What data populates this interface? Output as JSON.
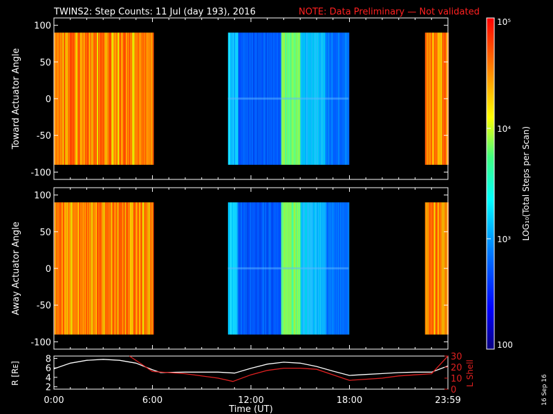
{
  "title": "TWINS2: Step Counts: 11 Jul (day 193), 2016",
  "note": "NOTE: Data Preliminary — Not validated",
  "date_stamp": "16 Sep 16",
  "colors": {
    "background": "#000000",
    "axis": "#ffffff",
    "note": "#ff2020",
    "lshell": "#e02020"
  },
  "chart_data": [
    {
      "type": "heatmap",
      "ylabel": "Toward Actuator Angle",
      "ylim": [
        -110,
        110
      ],
      "yticks": [
        "100",
        "50",
        "0",
        "-50",
        "-100"
      ],
      "ytick_values": [
        100,
        50,
        0,
        -50,
        -100
      ],
      "x_range_hours": [
        0,
        24
      ],
      "data_range": [
        -90,
        90
      ],
      "segments": [
        {
          "start": 0.0,
          "end": 6.05,
          "level": "high"
        },
        {
          "start": 10.6,
          "end": 17.95,
          "level": "mixed"
        },
        {
          "start": 22.6,
          "end": 24.0,
          "level": "high"
        }
      ]
    },
    {
      "type": "heatmap",
      "ylabel": "Away Actuator Angle",
      "ylim": [
        -110,
        110
      ],
      "yticks": [
        "100",
        "50",
        "0",
        "-50",
        "-100"
      ],
      "ytick_values": [
        100,
        50,
        0,
        -50,
        -100
      ],
      "x_range_hours": [
        0,
        24
      ],
      "data_range": [
        -90,
        90
      ],
      "segments": [
        {
          "start": 0.0,
          "end": 6.05,
          "level": "high"
        },
        {
          "start": 10.6,
          "end": 17.95,
          "level": "mixed"
        },
        {
          "start": 22.6,
          "end": 24.0,
          "level": "high"
        }
      ]
    },
    {
      "type": "line",
      "xlabel": "Time (UT)",
      "xticks": [
        "0:00",
        "6:00",
        "12:00",
        "18:00",
        "23:59"
      ],
      "xtick_values": [
        0,
        6,
        12,
        18,
        24
      ],
      "ylabel_left": "R [Rᴇ]",
      "ylabel_right": "L Shell",
      "yticks_left": [
        "8",
        "6",
        "4",
        "2"
      ],
      "yticks_left_values": [
        8,
        6,
        4,
        2
      ],
      "ylim_left": [
        1.5,
        8.5
      ],
      "yticks_right": [
        "30",
        "20",
        "10",
        "0"
      ],
      "yticks_right_values": [
        30,
        20,
        10,
        0
      ],
      "ylim_right": [
        0,
        30
      ],
      "series": [
        {
          "axis": "left",
          "x": [
            0,
            1,
            2,
            3,
            4,
            5,
            6,
            6.5,
            8,
            10,
            11,
            12,
            13,
            14,
            15,
            16,
            17,
            18,
            19,
            20,
            21,
            22,
            23,
            24
          ],
          "y": [
            5.8,
            7.0,
            7.6,
            7.8,
            7.6,
            7.0,
            5.6,
            5.0,
            5.1,
            5.1,
            4.9,
            5.9,
            6.8,
            7.2,
            7.0,
            6.3,
            5.3,
            4.4,
            4.6,
            4.8,
            5.0,
            5.1,
            5.1,
            6.4
          ]
        },
        {
          "axis": "right",
          "x": [
            4.6,
            6.0,
            8.0,
            10.0,
            10.9,
            12.0,
            13.0,
            14.0,
            15.0,
            16.0,
            17.0,
            18.0,
            19.0,
            20.0,
            21.0,
            22.0,
            23.0,
            24.0
          ],
          "y": [
            30,
            16,
            14,
            10,
            7,
            13,
            17,
            19,
            19,
            18,
            13,
            8,
            9,
            10,
            12,
            13,
            14,
            30
          ]
        }
      ]
    }
  ],
  "colorbar": {
    "label": "LOG₁₀(Total Steps per Scan)",
    "ticks": [
      {
        "label": "10⁵",
        "value": 100000
      },
      {
        "label": "10⁴",
        "value": 10000
      },
      {
        "label": "10³",
        "value": 1000
      },
      {
        "label": "100",
        "value": 100
      }
    ]
  }
}
